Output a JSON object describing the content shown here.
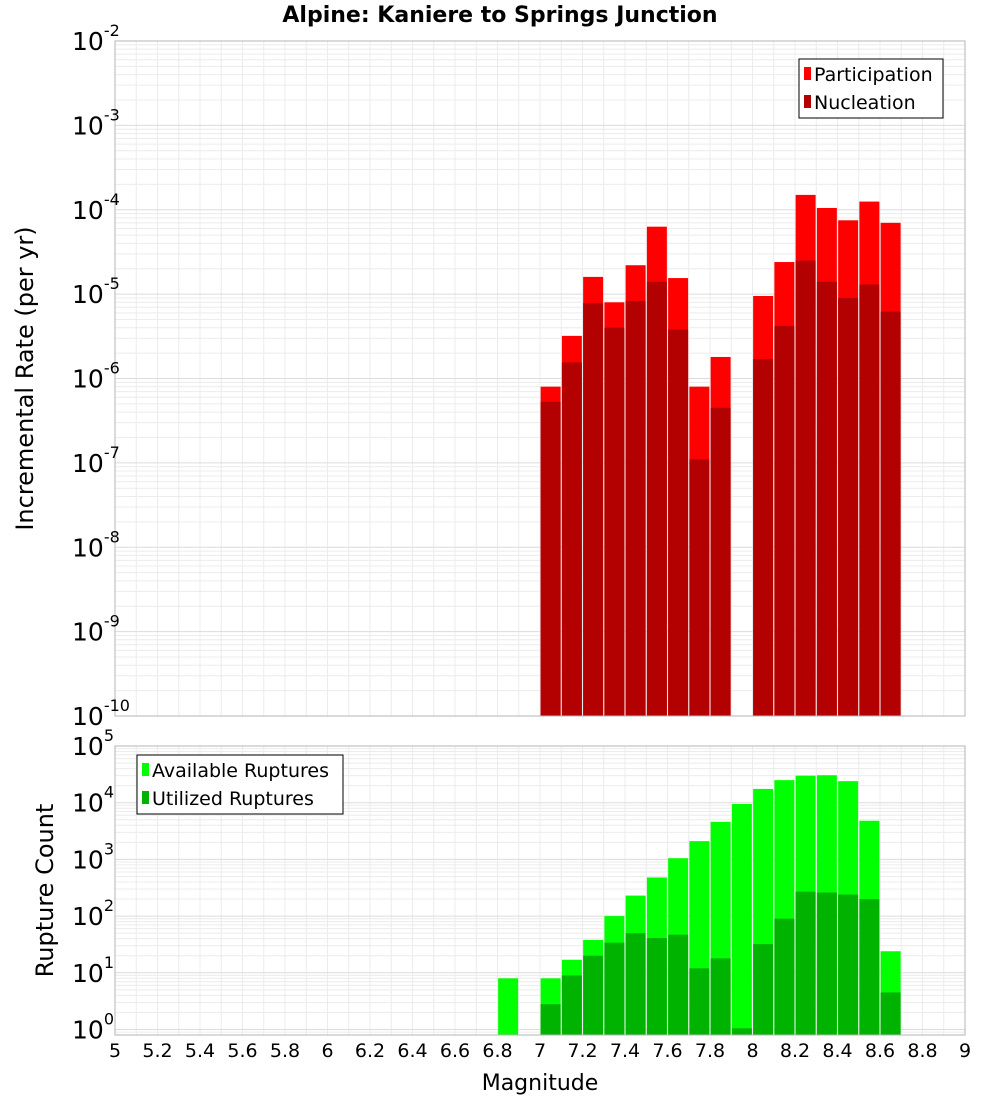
{
  "chart_data": [
    {
      "type": "bar",
      "title": "Alpine: Kaniere to Springs Junction",
      "ylabel": "Incremental Rate (per yr)",
      "xlabel": "",
      "yscale": "log",
      "ylim": [
        1e-10,
        0.01
      ],
      "xlim": [
        5,
        9
      ],
      "y_ticks": [
        {
          "base": "10",
          "exp": "-10"
        },
        {
          "base": "10",
          "exp": "-9"
        },
        {
          "base": "10",
          "exp": "-8"
        },
        {
          "base": "10",
          "exp": "-7"
        },
        {
          "base": "10",
          "exp": "-6"
        },
        {
          "base": "10",
          "exp": "-5"
        },
        {
          "base": "10",
          "exp": "-4"
        },
        {
          "base": "10",
          "exp": "-3"
        },
        {
          "base": "10",
          "exp": "-2"
        }
      ],
      "legend_position": "top-right",
      "grid": true,
      "series": [
        {
          "name": "Participation",
          "color": "#ff0000",
          "points": [
            {
              "x": 7.05,
              "y": 8e-07
            },
            {
              "x": 7.15,
              "y": 3.2e-06
            },
            {
              "x": 7.25,
              "y": 1.6e-05
            },
            {
              "x": 7.35,
              "y": 8e-06
            },
            {
              "x": 7.45,
              "y": 2.2e-05
            },
            {
              "x": 7.55,
              "y": 6.3e-05
            },
            {
              "x": 7.65,
              "y": 1.55e-05
            },
            {
              "x": 7.75,
              "y": 8e-07
            },
            {
              "x": 7.85,
              "y": 1.8e-06
            },
            {
              "x": 8.05,
              "y": 9.5e-06
            },
            {
              "x": 8.15,
              "y": 2.4e-05
            },
            {
              "x": 8.25,
              "y": 0.00015
            },
            {
              "x": 8.35,
              "y": 0.000105
            },
            {
              "x": 8.45,
              "y": 7.5e-05
            },
            {
              "x": 8.55,
              "y": 0.000125
            },
            {
              "x": 8.65,
              "y": 7e-05
            }
          ]
        },
        {
          "name": "Nucleation",
          "color": "#b30000",
          "points": [
            {
              "x": 7.05,
              "y": 5.3e-07
            },
            {
              "x": 7.15,
              "y": 1.55e-06
            },
            {
              "x": 7.25,
              "y": 7.8e-06
            },
            {
              "x": 7.35,
              "y": 4e-06
            },
            {
              "x": 7.45,
              "y": 8.3e-06
            },
            {
              "x": 7.55,
              "y": 1.4e-05
            },
            {
              "x": 7.65,
              "y": 3.8e-06
            },
            {
              "x": 7.75,
              "y": 1.1e-07
            },
            {
              "x": 7.85,
              "y": 4.5e-07
            },
            {
              "x": 8.05,
              "y": 1.7e-06
            },
            {
              "x": 8.15,
              "y": 4.2e-06
            },
            {
              "x": 8.25,
              "y": 2.5e-05
            },
            {
              "x": 8.35,
              "y": 1.4e-05
            },
            {
              "x": 8.45,
              "y": 9e-06
            },
            {
              "x": 8.55,
              "y": 1.3e-05
            },
            {
              "x": 8.65,
              "y": 6.2e-06
            }
          ]
        }
      ]
    },
    {
      "type": "bar",
      "title": "",
      "ylabel": "Rupture Count",
      "xlabel": "Magnitude",
      "yscale": "log",
      "ylim": [
        0.8,
        100000.0
      ],
      "xlim": [
        5,
        9
      ],
      "y_ticks": [
        {
          "base": "10",
          "exp": "0"
        },
        {
          "base": "10",
          "exp": "1"
        },
        {
          "base": "10",
          "exp": "2"
        },
        {
          "base": "10",
          "exp": "3"
        },
        {
          "base": "10",
          "exp": "4"
        },
        {
          "base": "10",
          "exp": "5"
        }
      ],
      "x_ticks": [
        "5",
        "5.2",
        "5.4",
        "5.6",
        "5.8",
        "6",
        "6.2",
        "6.4",
        "6.6",
        "6.8",
        "7",
        "7.2",
        "7.4",
        "7.6",
        "7.8",
        "8",
        "8.2",
        "8.4",
        "8.6",
        "8.8",
        "9"
      ],
      "legend_position": "top-left",
      "grid": true,
      "series": [
        {
          "name": "Available Ruptures",
          "color": "#00ff00",
          "points": [
            {
              "x": 6.85,
              "y": 8
            },
            {
              "x": 7.05,
              "y": 8
            },
            {
              "x": 7.15,
              "y": 17
            },
            {
              "x": 7.25,
              "y": 38
            },
            {
              "x": 7.35,
              "y": 100
            },
            {
              "x": 7.45,
              "y": 230
            },
            {
              "x": 7.55,
              "y": 480
            },
            {
              "x": 7.65,
              "y": 1050
            },
            {
              "x": 7.75,
              "y": 2100
            },
            {
              "x": 7.85,
              "y": 4600
            },
            {
              "x": 7.95,
              "y": 9500
            },
            {
              "x": 8.05,
              "y": 17500
            },
            {
              "x": 8.15,
              "y": 25000
            },
            {
              "x": 8.25,
              "y": 30000
            },
            {
              "x": 8.35,
              "y": 30500
            },
            {
              "x": 8.45,
              "y": 24000
            },
            {
              "x": 8.55,
              "y": 4800
            },
            {
              "x": 8.65,
              "y": 24
            }
          ]
        },
        {
          "name": "Utilized Ruptures",
          "color": "#00b300",
          "points": [
            {
              "x": 7.05,
              "y": 2.8
            },
            {
              "x": 7.15,
              "y": 9
            },
            {
              "x": 7.25,
              "y": 20
            },
            {
              "x": 7.35,
              "y": 34
            },
            {
              "x": 7.45,
              "y": 50
            },
            {
              "x": 7.55,
              "y": 41
            },
            {
              "x": 7.65,
              "y": 47
            },
            {
              "x": 7.75,
              "y": 12
            },
            {
              "x": 7.85,
              "y": 18
            },
            {
              "x": 7.95,
              "y": 1.05
            },
            {
              "x": 8.05,
              "y": 32
            },
            {
              "x": 8.15,
              "y": 90
            },
            {
              "x": 8.25,
              "y": 270
            },
            {
              "x": 8.35,
              "y": 260
            },
            {
              "x": 8.45,
              "y": 240
            },
            {
              "x": 8.55,
              "y": 200
            },
            {
              "x": 8.65,
              "y": 4.5
            }
          ]
        }
      ]
    }
  ]
}
